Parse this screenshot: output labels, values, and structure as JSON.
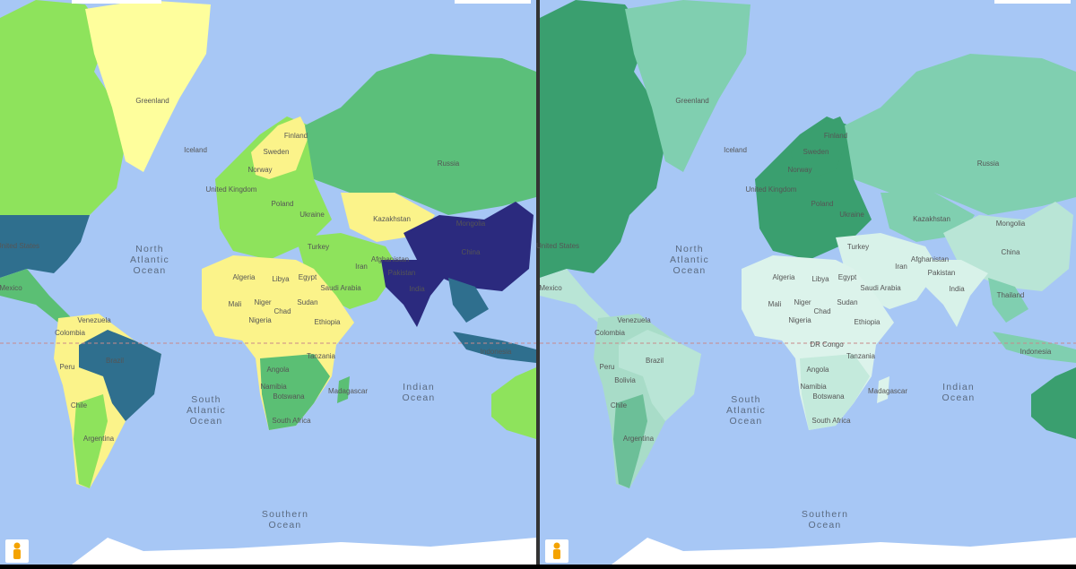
{
  "maps": [
    {
      "countries": [
        "Greenland",
        "Iceland",
        "Finland",
        "Sweden",
        "Norway",
        "United Kingdom",
        "Poland",
        "Ukraine",
        "Kazakhstan",
        "Mongolia",
        "Russia",
        "China",
        "Turkey",
        "Iran",
        "Afghanistan",
        "Pakistan",
        "India",
        "Algeria",
        "Libya",
        "Egypt",
        "Saudi Arabia",
        "Mali",
        "Niger",
        "Chad",
        "Sudan",
        "Ethiopia",
        "Nigeria",
        "Angola",
        "Tanzania",
        "Namibia",
        "Botswana",
        "Madagascar",
        "South Africa",
        "Venezuela",
        "Colombia",
        "Peru",
        "Brazil",
        "Chile",
        "Argentina",
        "United States",
        "Mexico",
        "Indonesia"
      ],
      "oceans": [
        [
          "North",
          "Atlantic",
          "Ocean"
        ],
        [
          "South",
          "Atlantic",
          "Ocean"
        ],
        [
          "Indian",
          "Ocean"
        ],
        [
          "Southern",
          "Ocean"
        ]
      ]
    },
    {
      "countries": [
        "Greenland",
        "Iceland",
        "Finland",
        "Sweden",
        "Norway",
        "United Kingdom",
        "Poland",
        "Ukraine",
        "Kazakhstan",
        "Mongolia",
        "Russia",
        "China",
        "Turkey",
        "Iran",
        "Afghanistan",
        "Pakistan",
        "India",
        "Algeria",
        "Libya",
        "Egypt",
        "Saudi Arabia",
        "Mali",
        "Niger",
        "Chad",
        "Sudan",
        "Ethiopia",
        "Nigeria",
        "Angola",
        "Tanzania",
        "Namibia",
        "Botswana",
        "Madagascar",
        "South Africa",
        "Venezuela",
        "Colombia",
        "Peru",
        "Brazil",
        "Chile",
        "Argentina",
        "United States",
        "Mexico",
        "Indonesia",
        "Bolivia",
        "DR Congo",
        "Thailand"
      ],
      "oceans": [
        [
          "North",
          "Atlantic",
          "Ocean"
        ],
        [
          "South",
          "Atlantic",
          "Ocean"
        ],
        [
          "Indian",
          "Ocean"
        ],
        [
          "Southern",
          "Ocean"
        ]
      ]
    }
  ]
}
